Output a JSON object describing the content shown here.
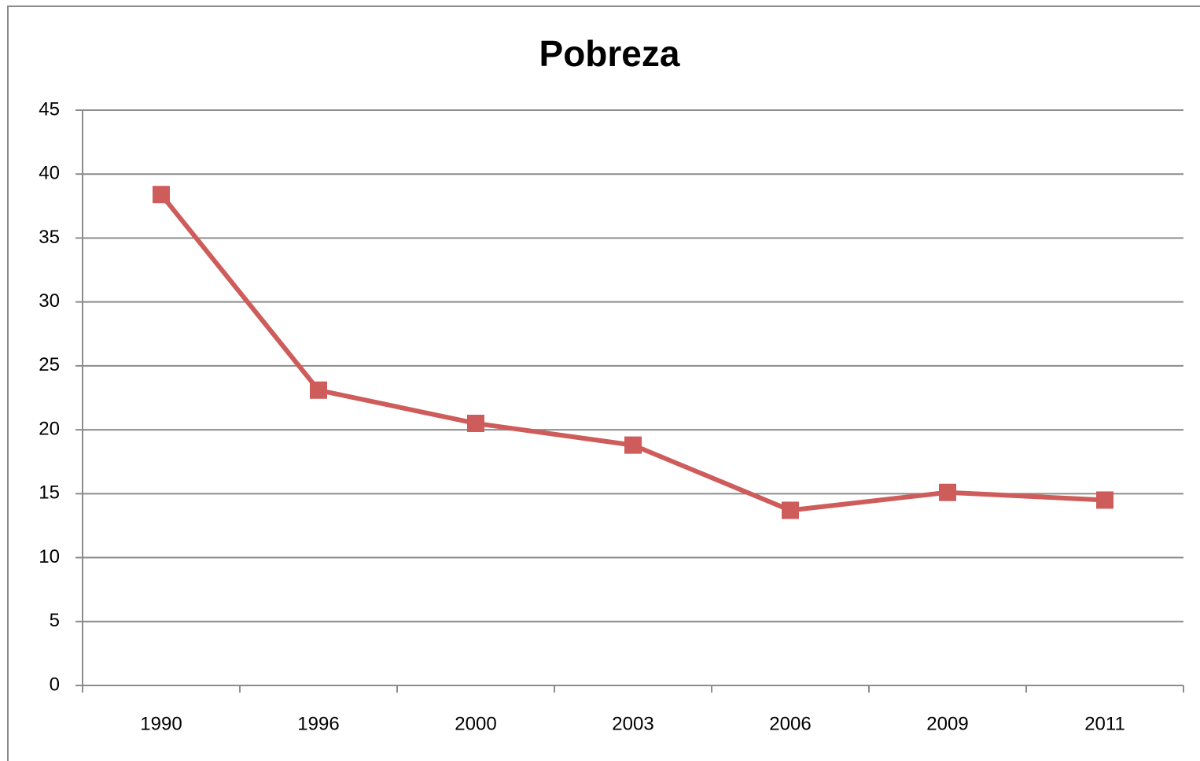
{
  "chart_data": {
    "type": "line",
    "title": "Pobreza",
    "categories": [
      "1990",
      "1996",
      "2000",
      "2003",
      "2006",
      "2009",
      "2011"
    ],
    "values": [
      38.4,
      23.1,
      20.5,
      18.8,
      13.7,
      15.1,
      14.5
    ],
    "color": "#cd5c5a",
    "ylim": [
      0,
      45
    ],
    "yticks": [
      0,
      5,
      10,
      15,
      20,
      25,
      30,
      35,
      40,
      45
    ],
    "grid": true
  }
}
